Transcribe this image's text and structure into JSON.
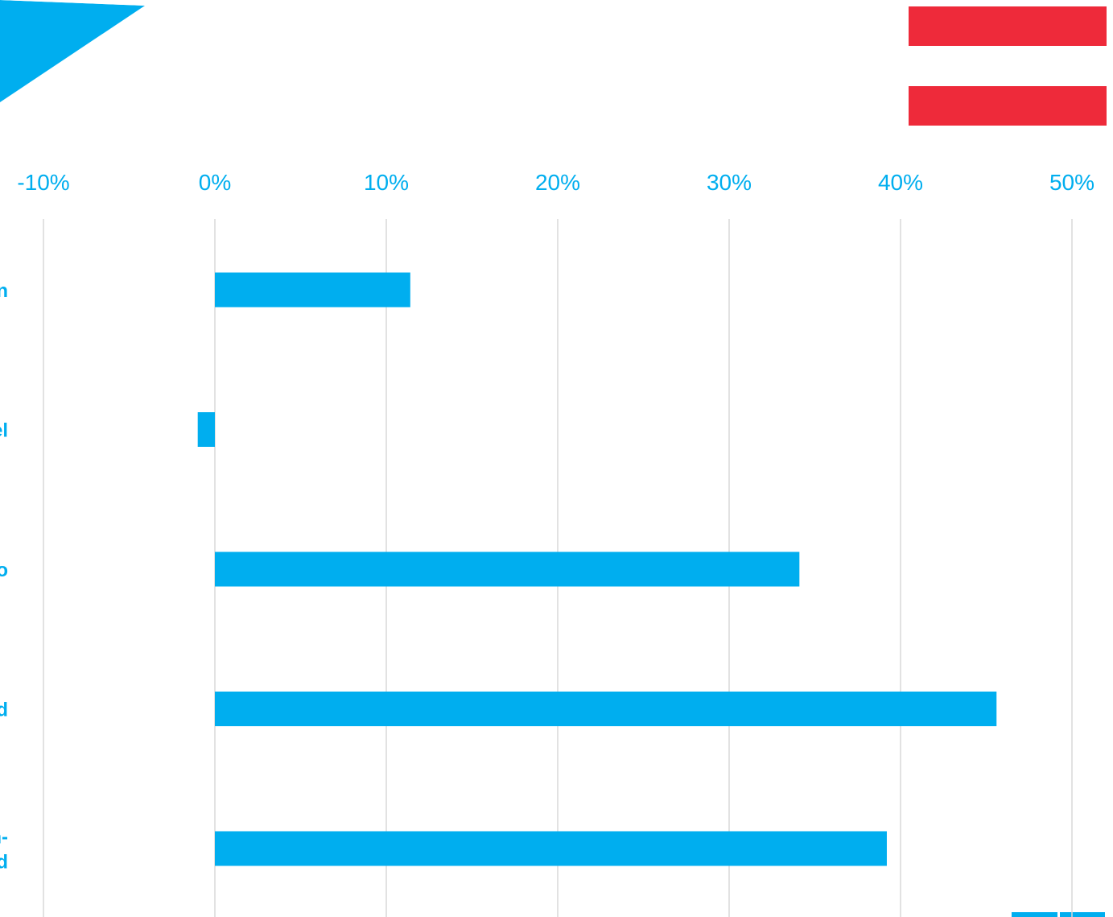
{
  "colors": {
    "accent": "#00AEEF",
    "flag_red": "#EE2A3A",
    "gridline": "#D9D9D9",
    "background": "#FFFFFF"
  },
  "decorations": {
    "corner_triangle": "blue-corner-triangle",
    "flag": "red-white-red-flag",
    "corner_block": "blue-corner-block"
  },
  "chart_data": {
    "type": "bar",
    "orientation": "horizontal",
    "xlim": [
      -10,
      52
    ],
    "x_ticks": [
      -10,
      0,
      10,
      20,
      30,
      40,
      50
    ],
    "x_tick_labels": [
      "-10%",
      "0%",
      "10%",
      "20%",
      "30%",
      "40%",
      "50%"
    ],
    "x_axis_position": "top",
    "grid": true,
    "legend": "none",
    "categories": [
      {
        "lines": [
          "n"
        ]
      },
      {
        "lines": [
          "el"
        ]
      },
      {
        "lines": [
          "o"
        ]
      },
      {
        "lines": [
          "d"
        ]
      },
      {
        "lines": [
          "n-",
          "d"
        ]
      }
    ],
    "values": [
      11.4,
      -1.0,
      34.1,
      45.6,
      39.2
    ]
  }
}
